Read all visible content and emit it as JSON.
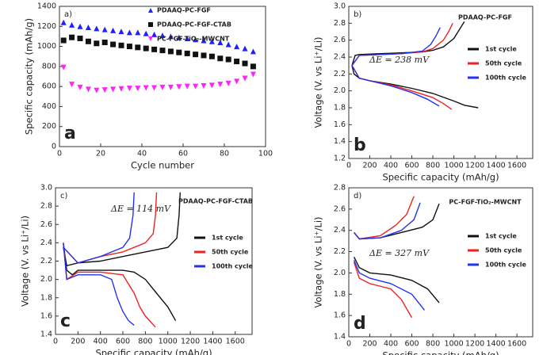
{
  "chart_data": [
    {
      "type": "scatter",
      "panel_label": "a)",
      "big_label": "a",
      "x_label": "Cycle number",
      "y_label": "Specific capacity (mAh/g)",
      "xlim": [
        0,
        100
      ],
      "xticks": [
        0,
        20,
        40,
        60,
        80,
        100
      ],
      "ylim": [
        0,
        1400
      ],
      "yticks": [
        0,
        200,
        400,
        600,
        800,
        1000,
        1200,
        1400
      ],
      "grid": false,
      "x": [
        2,
        6,
        10,
        14,
        18,
        22,
        26,
        30,
        34,
        38,
        42,
        46,
        50,
        54,
        58,
        62,
        66,
        70,
        74,
        78,
        82,
        86,
        90,
        94
      ],
      "series": [
        {
          "name": "PDAAQ-PC-FGF",
          "color": "#1f1fff",
          "marker": "triangle-up",
          "values": [
            1240,
            1215,
            1200,
            1190,
            1180,
            1170,
            1160,
            1150,
            1140,
            1140,
            1130,
            1120,
            1110,
            1100,
            1090,
            1080,
            1070,
            1060,
            1050,
            1040,
            1020,
            1000,
            980,
            950
          ]
        },
        {
          "name": "PDAAQ-PC-FGF-CTAB",
          "color": "#111111",
          "marker": "square",
          "values": [
            1060,
            1090,
            1080,
            1050,
            1030,
            1040,
            1020,
            1010,
            1000,
            990,
            980,
            970,
            960,
            950,
            940,
            930,
            920,
            910,
            900,
            880,
            870,
            850,
            830,
            800
          ]
        },
        {
          "name": "PC-FGF-TiO₂-MWCNT",
          "color": "#ff22ff",
          "marker": "triangle-down",
          "values": [
            790,
            620,
            590,
            570,
            560,
            565,
            570,
            575,
            580,
            580,
            585,
            585,
            590,
            590,
            595,
            600,
            600,
            605,
            610,
            620,
            630,
            650,
            680,
            720
          ]
        }
      ]
    },
    {
      "type": "line",
      "panel_label": "b)",
      "big_label": "b",
      "title": "PDAAQ-PC-FGF",
      "annotation": "ΔE = 238 mV",
      "x_label": "Specific capacity (mAh/g)",
      "y_label": "Voltage (V. vs Li⁺/Li)",
      "xlim": [
        0,
        1750
      ],
      "xticks": [
        0,
        200,
        400,
        600,
        800,
        1000,
        1200,
        1400,
        1600
      ],
      "ylim": [
        1.2,
        3.0
      ],
      "yticks": [
        1.2,
        1.4,
        1.6,
        1.8,
        {
          "value": 2.0,
          "label": "2.0"
        },
        2.2,
        2.4,
        2.6,
        2.8,
        {
          "value": 3.0,
          "label": "3.0"
        }
      ],
      "series": [
        {
          "name": "1st cycle",
          "color": "#111111",
          "x": [
            30,
            50,
            100,
            200,
            400,
            600,
            800,
            1000,
            1100,
            1230,
            null,
            30,
            60,
            100,
            300,
            500,
            700,
            800,
            900,
            1000,
            1050,
            1100
          ],
          "values": [
            2.3,
            2.2,
            2.15,
            2.12,
            2.08,
            2.03,
            1.97,
            1.88,
            1.83,
            1.8,
            null,
            2.3,
            2.42,
            2.43,
            2.44,
            2.45,
            2.46,
            2.48,
            2.52,
            2.62,
            2.72,
            2.82
          ]
        },
        {
          "name": "50th cycle",
          "color": "#ee2222",
          "x": [
            30,
            100,
            200,
            400,
            600,
            800,
            900,
            980,
            null,
            30,
            100,
            300,
            500,
            700,
            800,
            900,
            950,
            990
          ],
          "values": [
            2.3,
            2.15,
            2.12,
            2.07,
            2.0,
            1.92,
            1.85,
            1.78,
            null,
            2.3,
            2.42,
            2.43,
            2.44,
            2.46,
            2.5,
            2.6,
            2.7,
            2.8
          ]
        },
        {
          "name": "100th cycle",
          "color": "#2233ee",
          "x": [
            30,
            100,
            200,
            400,
            600,
            750,
            860,
            null,
            30,
            100,
            300,
            500,
            700,
            780,
            830,
            870
          ],
          "values": [
            2.3,
            2.15,
            2.12,
            2.06,
            1.98,
            1.9,
            1.82,
            null,
            2.3,
            2.42,
            2.43,
            2.44,
            2.47,
            2.55,
            2.65,
            2.75
          ]
        }
      ]
    },
    {
      "type": "line",
      "panel_label": "c)",
      "big_label": "c",
      "title": "PDAAQ-PC-FGF-CTAB",
      "annotation": "ΔE = 114 mV",
      "x_label": "Specific capacity (mAh/g)",
      "y_label": "Voltage (V. vs Li⁺/Li)",
      "xlim": [
        0,
        1750
      ],
      "xticks": [
        0,
        200,
        400,
        600,
        800,
        1000,
        1200,
        1400,
        1600
      ],
      "ylim": [
        1.4,
        3.0
      ],
      "yticks": [
        1.4,
        1.6,
        1.8,
        {
          "value": 2.0,
          "label": "2.0"
        },
        2.2,
        2.4,
        2.6,
        2.8,
        {
          "value": 3.0,
          "label": "3.0"
        }
      ],
      "series": [
        {
          "name": "1st cycle",
          "color": "#111111",
          "x": [
            70,
            100,
            150,
            200,
            400,
            600,
            700,
            800,
            900,
            1000,
            1070,
            null,
            70,
            100,
            200,
            400,
            600,
            800,
            1000,
            1080,
            1100,
            1110
          ],
          "values": [
            2.4,
            2.1,
            2.05,
            2.1,
            2.1,
            2.1,
            2.08,
            2.0,
            1.85,
            1.7,
            1.55,
            null,
            2.35,
            2.15,
            2.18,
            2.2,
            2.25,
            2.3,
            2.35,
            2.45,
            2.7,
            2.95
          ]
        },
        {
          "name": "50th cycle",
          "color": "#ee2222",
          "x": [
            70,
            100,
            200,
            400,
            600,
            700,
            750,
            800,
            890,
            null,
            70,
            200,
            400,
            600,
            800,
            870,
            890,
            900
          ],
          "values": [
            2.4,
            2.0,
            2.08,
            2.08,
            2.05,
            1.85,
            1.7,
            1.6,
            1.48,
            null,
            2.35,
            2.18,
            2.25,
            2.3,
            2.4,
            2.5,
            2.7,
            2.95
          ]
        },
        {
          "name": "100th cycle",
          "color": "#2233ee",
          "x": [
            70,
            100,
            200,
            400,
            500,
            550,
            600,
            650,
            700,
            null,
            70,
            200,
            400,
            600,
            660,
            690,
            700
          ],
          "values": [
            2.4,
            2.0,
            2.05,
            2.05,
            2.0,
            1.8,
            1.65,
            1.55,
            1.5,
            null,
            2.35,
            2.18,
            2.25,
            2.35,
            2.45,
            2.7,
            2.95
          ]
        }
      ]
    },
    {
      "type": "line",
      "panel_label": "d)",
      "big_label": "d",
      "title": "PC-FGF-TiO₂-MWCNT",
      "annotation": "ΔE = 327 mV",
      "x_label": "Specific capacity (mAh/g)",
      "y_label": "Voltage (V. vs Li⁺/Li)",
      "xlim": [
        0,
        1750
      ],
      "xticks": [
        0,
        200,
        400,
        600,
        800,
        1000,
        1200,
        1400,
        1600
      ],
      "ylim": [
        1.4,
        2.8
      ],
      "yticks": [
        1.4,
        1.6,
        1.8,
        {
          "value": 2.0,
          "label": "2.0"
        },
        2.2,
        2.4,
        2.6,
        2.8
      ],
      "series": [
        {
          "name": "1st cycle",
          "color": "#111111",
          "x": [
            50,
            100,
            200,
            400,
            600,
            750,
            860,
            null,
            50,
            100,
            300,
            500,
            700,
            800,
            860
          ],
          "values": [
            2.15,
            2.05,
            2.0,
            1.98,
            1.93,
            1.85,
            1.72,
            null,
            2.38,
            2.32,
            2.33,
            2.38,
            2.43,
            2.5,
            2.65
          ]
        },
        {
          "name": "50th cycle",
          "color": "#ee2222",
          "x": [
            50,
            100,
            200,
            400,
            500,
            600,
            null,
            50,
            100,
            300,
            450,
            550,
            620
          ],
          "values": [
            2.1,
            1.95,
            1.9,
            1.85,
            1.75,
            1.58,
            null,
            2.38,
            2.32,
            2.35,
            2.45,
            2.55,
            2.72
          ]
        },
        {
          "name": "100th cycle",
          "color": "#2233ee",
          "x": [
            50,
            100,
            200,
            400,
            600,
            720,
            null,
            50,
            100,
            300,
            500,
            620,
            680
          ],
          "values": [
            2.12,
            2.0,
            1.95,
            1.9,
            1.8,
            1.65,
            null,
            2.38,
            2.32,
            2.33,
            2.4,
            2.5,
            2.66
          ]
        }
      ]
    }
  ]
}
